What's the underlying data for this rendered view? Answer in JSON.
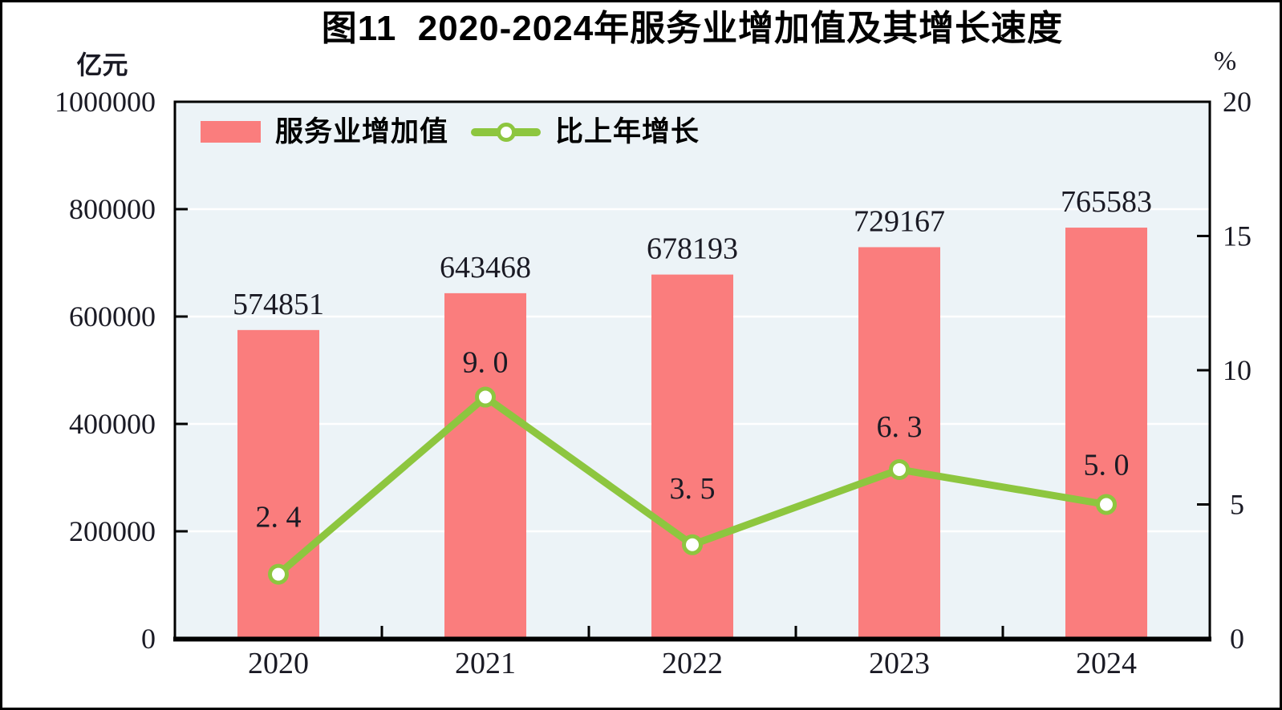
{
  "figure": {
    "title": "图11  2020-2024年服务业增加值及其增长速度",
    "left_unit": "亿元",
    "right_unit": "%"
  },
  "legend": {
    "bar_label": "服务业增加值",
    "line_label": "比上年增长"
  },
  "colors": {
    "bar": "#fa7d7d",
    "line": "#8dc63f",
    "marker_fill": "#ffffff",
    "plot_background": "#ecf3f7",
    "gridline": "#ffffff",
    "axis": "#000000",
    "text": "#1a1a24"
  },
  "chart_data": {
    "type": "bar+line",
    "title": "图11  2020-2024年服务业增加值及其增长速度",
    "categories": [
      "2020",
      "2021",
      "2022",
      "2023",
      "2024"
    ],
    "series": [
      {
        "name": "服务业增加值",
        "type": "bar",
        "axis": "left",
        "unit": "亿元",
        "values": [
          574851,
          643468,
          678193,
          729167,
          765583
        ],
        "value_labels": [
          "574851",
          "643468",
          "678193",
          "729167",
          "765583"
        ]
      },
      {
        "name": "比上年增长",
        "type": "line",
        "axis": "right",
        "unit": "%",
        "values": [
          2.4,
          9.0,
          3.5,
          6.3,
          5.0
        ],
        "value_labels": [
          "2. 4",
          "9. 0",
          "3. 5",
          "6. 3",
          "5. 0"
        ]
      }
    ],
    "left_axis": {
      "unit": "亿元",
      "min": 0,
      "max": 1000000,
      "tick_interval": 200000,
      "tick_labels": [
        "0",
        "200000",
        "400000",
        "600000",
        "800000",
        "1000000"
      ]
    },
    "right_axis": {
      "unit": "%",
      "min": 0,
      "max": 20,
      "tick_interval": 5,
      "tick_labels": [
        "0",
        "5",
        "10",
        "15",
        "20"
      ]
    },
    "grid": "horizontal-white-on-light-blue",
    "legend_position": "top-left-inside"
  }
}
